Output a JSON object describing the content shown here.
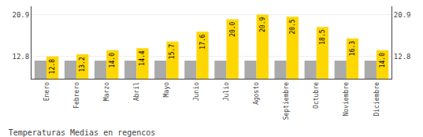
{
  "chart_data": {
    "type": "bar",
    "title": "Temperaturas Medias en regencos",
    "categories": [
      "Enero",
      "Febrero",
      "Marzo",
      "Abril",
      "Mayo",
      "Junio",
      "Julio",
      "Agosto",
      "Septiembre",
      "Octubre",
      "Noviembre",
      "Diciembre"
    ],
    "series": [
      {
        "color": "#AAAAAA",
        "values": [
          12.0,
          12.0,
          12.0,
          12.0,
          12.0,
          12.0,
          12.0,
          12.0,
          12.0,
          12.0,
          12.0,
          12.0
        ]
      },
      {
        "color": "#FFD700",
        "values": [
          12.8,
          13.2,
          14.0,
          14.4,
          15.7,
          17.6,
          20.0,
          20.9,
          20.5,
          18.5,
          16.3,
          14.0
        ],
        "value_labels": [
          "12.8",
          "13.2",
          "14.0",
          "14.4",
          "15.7",
          "17.6",
          "20.0",
          "20.9",
          "20.5",
          "18.5",
          "16.3",
          "14.0"
        ]
      }
    ],
    "ylim": [
      8.5,
      22.5
    ],
    "yticks": [
      12.8,
      20.9
    ],
    "y2lim": [
      8.5,
      22.5
    ],
    "y2ticks": [
      12.8,
      20.9
    ],
    "grid": true,
    "data_labels": true
  }
}
